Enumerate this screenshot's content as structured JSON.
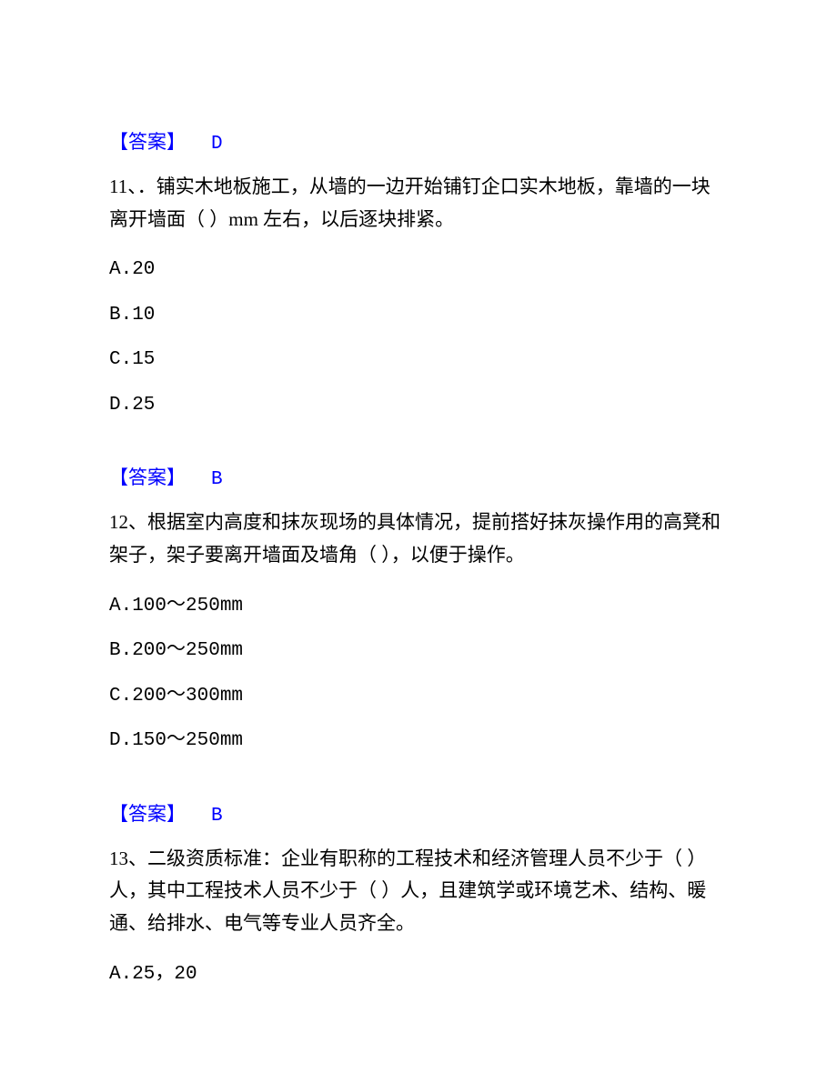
{
  "answer10": {
    "label": "【答案】",
    "letter": "D"
  },
  "question11": {
    "text": "11、．铺实木地板施工，从墙的一边开始铺钉企口实木地板，靠墙的一块离开墙面（ ）mm 左右，以后逐块排紧。",
    "optionA": "A.20",
    "optionB": "B.10",
    "optionC": "C.15",
    "optionD": "D.25"
  },
  "answer11": {
    "label": "【答案】",
    "letter": "B"
  },
  "question12": {
    "text": "12、根据室内高度和抹灰现场的具体情况，提前搭好抹灰操作用的高凳和架子，架子要离开墙面及墙角（ ），以便于操作。",
    "optionA": "A.100～250mm",
    "optionB": "B.200～250mm",
    "optionC": "C.200～300mm",
    "optionD": "D.150～250mm"
  },
  "answer12": {
    "label": "【答案】",
    "letter": "B"
  },
  "question13": {
    "text": "13、二级资质标准：企业有职称的工程技术和经济管理人员不少于（ ）人，其中工程技术人员不少于（ ）人，且建筑学或环境艺术、结构、暖通、给排水、电气等专业人员齐全。",
    "optionA": "A.25，20"
  },
  "colors": {
    "answer": "#0000ff",
    "text": "#000000",
    "background": "#ffffff"
  },
  "typography": {
    "fontSize": 21,
    "lineHeight": 1.7,
    "fontFamily": "SimSun"
  }
}
